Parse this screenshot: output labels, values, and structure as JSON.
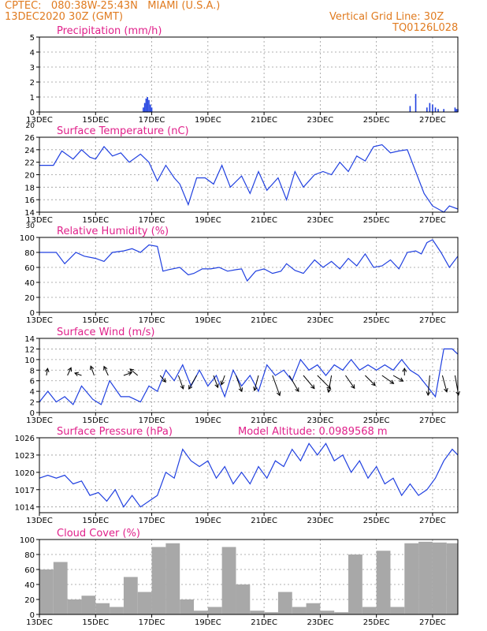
{
  "header": {
    "line1": "CPTEC:   080:38W-25:43N   MIAMI (U.S.A.)",
    "line2": "13DEC2020 30Z (GMT)",
    "grid_note": "Vertical Grid Line: 30Z",
    "code": "TQ0126L028"
  },
  "colors": {
    "header": "#e07b20",
    "title": "#e0208a",
    "line": "#2040e0",
    "bar": "#a8a8a8",
    "arrow": "#000000"
  },
  "x_labels": [
    "13DEC",
    "15DEC",
    "17DEC",
    "19DEC",
    "21DEC",
    "23DEC",
    "25DEC",
    "27DEC"
  ],
  "chart_data": [
    {
      "type": "bar",
      "title": "Precipitation (mm/h)",
      "ylim": [
        0,
        5
      ],
      "yticks": [
        0,
        1,
        2,
        3,
        4,
        5
      ],
      "ylabel_extra": "20",
      "x": [
        3.7,
        3.75,
        3.8,
        3.85,
        3.9,
        3.95,
        4.0,
        13.2,
        13.4,
        13.8,
        13.9,
        14.0,
        14.1,
        14.2,
        14.4,
        14.8,
        14.85,
        14.9
      ],
      "values": [
        0.3,
        0.6,
        0.9,
        1.0,
        0.8,
        0.5,
        0.3,
        0.4,
        1.2,
        0.3,
        0.6,
        0.5,
        0.3,
        0.2,
        0.2,
        0.3,
        0.2,
        0.2
      ]
    },
    {
      "type": "line",
      "title": "Surface Temperature (nC)",
      "ylim": [
        14,
        26
      ],
      "yticks": [
        14,
        16,
        18,
        20,
        22,
        24,
        26
      ],
      "ylabel_extra": "30",
      "x": [
        0,
        0.5,
        0.8,
        1.2,
        1.5,
        1.8,
        2.0,
        2.3,
        2.6,
        2.9,
        3.2,
        3.6,
        3.9,
        4.2,
        4.5,
        4.8,
        5.0,
        5.3,
        5.6,
        5.9,
        6.2,
        6.5,
        6.8,
        7.2,
        7.5,
        7.8,
        8.1,
        8.5,
        8.8,
        9.1,
        9.4,
        9.8,
        10.1,
        10.4,
        10.7,
        11.0,
        11.3,
        11.6,
        11.9,
        12.2,
        12.5,
        12.8,
        13.1,
        13.4,
        13.7,
        14.0,
        14.2,
        14.4,
        14.6,
        14.9
      ],
      "values": [
        21.5,
        21.5,
        23.8,
        22.5,
        24.0,
        22.8,
        22.5,
        24.5,
        23.0,
        23.5,
        22.0,
        23.3,
        22.0,
        19.0,
        21.5,
        19.5,
        18.5,
        15.2,
        19.5,
        19.5,
        18.5,
        21.5,
        18.0,
        19.8,
        17.0,
        20.5,
        17.5,
        19.5,
        16.0,
        20.5,
        18.0,
        20.0,
        20.5,
        20.0,
        22.0,
        20.5,
        23.0,
        22.2,
        24.5,
        24.8,
        23.5,
        23.8,
        24.0,
        20.5,
        17.0,
        15.0,
        14.5,
        14.0,
        15.0,
        14.5
      ]
    },
    {
      "type": "line",
      "title": "Relative Humidity (%)",
      "ylim": [
        0,
        100
      ],
      "yticks": [
        0,
        20,
        40,
        60,
        80,
        100
      ],
      "x": [
        0,
        0.6,
        0.9,
        1.3,
        1.6,
        2.0,
        2.3,
        2.6,
        3.0,
        3.3,
        3.6,
        3.9,
        4.2,
        4.4,
        4.6,
        5.0,
        5.3,
        5.5,
        5.8,
        6.1,
        6.4,
        6.7,
        7.0,
        7.2,
        7.4,
        7.7,
        8.0,
        8.3,
        8.6,
        8.8,
        9.1,
        9.4,
        9.8,
        10.1,
        10.4,
        10.7,
        11.0,
        11.3,
        11.6,
        11.9,
        12.2,
        12.5,
        12.8,
        13.1,
        13.4,
        13.6,
        13.8,
        14.0,
        14.3,
        14.6,
        14.9
      ],
      "values": [
        80,
        80,
        65,
        80,
        75,
        72,
        68,
        80,
        82,
        85,
        80,
        90,
        88,
        55,
        57,
        60,
        50,
        52,
        58,
        58,
        60,
        55,
        57,
        58,
        42,
        55,
        58,
        52,
        55,
        65,
        56,
        52,
        70,
        60,
        68,
        58,
        72,
        62,
        78,
        60,
        62,
        70,
        58,
        80,
        82,
        78,
        93,
        97,
        80,
        60,
        75
      ]
    },
    {
      "type": "line",
      "title": "Surface Wind (m/s)",
      "ylim": [
        0,
        14
      ],
      "yticks": [
        0,
        2,
        4,
        6,
        8,
        10,
        12,
        14
      ],
      "x": [
        0,
        0.3,
        0.6,
        0.9,
        1.2,
        1.5,
        1.9,
        2.2,
        2.5,
        2.9,
        3.2,
        3.6,
        3.9,
        4.2,
        4.5,
        4.8,
        5.1,
        5.4,
        5.7,
        6.0,
        6.3,
        6.6,
        6.9,
        7.2,
        7.5,
        7.8,
        8.1,
        8.4,
        8.7,
        9.0,
        9.3,
        9.6,
        9.9,
        10.2,
        10.5,
        10.8,
        11.1,
        11.4,
        11.7,
        12.0,
        12.3,
        12.6,
        12.9,
        13.2,
        13.5,
        13.8,
        14.1,
        14.4,
        14.7,
        14.9
      ],
      "values": [
        2,
        4,
        2,
        3,
        1.5,
        5,
        2.5,
        1.5,
        6,
        3,
        3,
        2,
        5,
        4,
        8,
        6,
        9,
        5,
        8,
        5,
        7,
        3,
        8,
        5,
        7,
        4,
        9,
        7,
        8,
        6,
        10,
        8,
        9,
        7,
        9,
        8,
        10,
        8,
        9,
        8,
        9,
        8,
        10,
        8,
        7,
        5,
        3,
        12,
        12,
        11
      ],
      "arrows_note": "wind direction arrows"
    },
    {
      "type": "line",
      "title": "Surface Pressure (hPa)",
      "extra_label": "Model Altitude: 0.0989568 m",
      "ylim": [
        1013,
        1026
      ],
      "yticks": [
        1014,
        1017,
        1020,
        1023,
        1026
      ],
      "x": [
        0,
        0.3,
        0.6,
        0.9,
        1.2,
        1.5,
        1.8,
        2.1,
        2.4,
        2.7,
        3.0,
        3.3,
        3.6,
        3.9,
        4.2,
        4.5,
        4.8,
        5.1,
        5.4,
        5.7,
        6.0,
        6.3,
        6.6,
        6.9,
        7.2,
        7.5,
        7.8,
        8.1,
        8.4,
        8.7,
        9.0,
        9.3,
        9.6,
        9.9,
        10.2,
        10.5,
        10.8,
        11.1,
        11.4,
        11.7,
        12.0,
        12.3,
        12.6,
        12.9,
        13.2,
        13.5,
        13.8,
        14.1,
        14.4,
        14.7,
        14.9
      ],
      "values": [
        1019,
        1019.5,
        1019,
        1019.5,
        1018,
        1018.5,
        1016,
        1016.5,
        1015,
        1017,
        1014,
        1016,
        1014,
        1015,
        1016,
        1020,
        1019,
        1024,
        1022,
        1021,
        1022,
        1019,
        1021,
        1018,
        1020,
        1018,
        1021,
        1019,
        1022,
        1021,
        1024,
        1022,
        1025,
        1023,
        1025,
        1022,
        1023,
        1020,
        1022,
        1019,
        1021,
        1018,
        1019,
        1016,
        1018,
        1016,
        1017,
        1019,
        1022,
        1024,
        1023
      ]
    },
    {
      "type": "bar",
      "title": "Cloud Cover (%)",
      "ylim": [
        0,
        100
      ],
      "yticks": [
        0,
        20,
        40,
        60,
        80,
        100
      ],
      "segments_x": [
        0,
        0.5,
        1.0,
        1.5,
        2.0,
        2.5,
        3.0,
        3.5,
        4.0,
        4.5,
        5.0,
        5.5,
        6.0,
        6.5,
        7.0,
        7.5,
        8.0,
        8.5,
        9.0,
        9.5,
        10.0,
        10.5,
        11.0,
        11.5,
        12.0,
        12.5,
        13.0,
        13.5,
        14.0,
        14.5,
        15.0
      ],
      "values": [
        60,
        70,
        20,
        25,
        15,
        10,
        50,
        30,
        90,
        95,
        20,
        5,
        10,
        90,
        40,
        5,
        3,
        30,
        10,
        15,
        5,
        3,
        80,
        10,
        85,
        10,
        95,
        97,
        96,
        95,
        95
      ]
    }
  ],
  "wind_arrows": [
    {
      "x": 0.25,
      "len": 0.5,
      "dir": 170
    },
    {
      "x": 1.0,
      "len": 0.6,
      "dir": 155
    },
    {
      "x": 1.5,
      "len": 0.5,
      "dir": 250
    },
    {
      "x": 1.95,
      "len": 0.7,
      "dir": 200
    },
    {
      "x": 2.45,
      "len": 0.7,
      "dir": 205
    },
    {
      "x": 3.0,
      "len": 0.6,
      "dir": 110
    },
    {
      "x": 3.5,
      "len": 0.7,
      "dir": 230
    },
    {
      "x": 4.3,
      "len": 0.6,
      "dir": 40
    },
    {
      "x": 4.95,
      "len": 1.0,
      "dir": 20
    },
    {
      "x": 5.6,
      "len": 1.1,
      "dir": 330
    },
    {
      "x": 6.2,
      "len": 0.9,
      "dir": 20
    },
    {
      "x": 6.6,
      "len": 0.7,
      "dir": 340
    },
    {
      "x": 7.0,
      "len": 1.2,
      "dir": 20
    },
    {
      "x": 7.8,
      "len": 1.1,
      "dir": 345
    },
    {
      "x": 8.3,
      "len": 1.5,
      "dir": 20
    },
    {
      "x": 8.9,
      "len": 1.3,
      "dir": 30
    },
    {
      "x": 9.4,
      "len": 1.2,
      "dir": 40
    },
    {
      "x": 9.9,
      "len": 1.3,
      "dir": 45
    },
    {
      "x": 10.4,
      "len": 1.2,
      "dir": 350
    },
    {
      "x": 10.9,
      "len": 1.1,
      "dir": 35
    },
    {
      "x": 11.6,
      "len": 1.0,
      "dir": 45
    },
    {
      "x": 12.2,
      "len": 1.0,
      "dir": 55
    },
    {
      "x": 12.6,
      "len": 0.8,
      "dir": 60
    },
    {
      "x": 13.0,
      "len": 0.5,
      "dir": 180
    },
    {
      "x": 13.9,
      "len": 1.4,
      "dir": 355
    },
    {
      "x": 14.35,
      "len": 1.2,
      "dir": 15
    },
    {
      "x": 14.8,
      "len": 1.4,
      "dir": 10
    }
  ]
}
